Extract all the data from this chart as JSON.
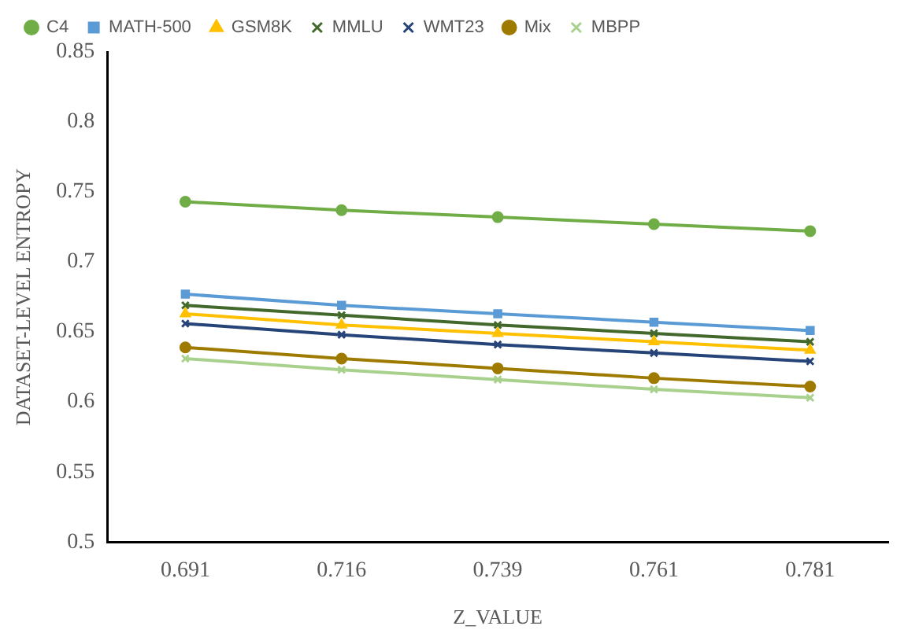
{
  "chart_data": {
    "type": "line",
    "xlabel": "Z_VALUE",
    "ylabel": "DATASET-LEVEL ENTROPY",
    "categories": [
      "0.691",
      "0.716",
      "0.739",
      "0.761",
      "0.781"
    ],
    "ylim": [
      0.5,
      0.85
    ],
    "yticks": [
      0.5,
      0.55,
      0.6,
      0.65,
      0.7,
      0.75,
      0.8,
      0.85
    ],
    "grid": false,
    "legend": "top",
    "series": [
      {
        "name": "C4",
        "color": "#70ad47",
        "marker": "circle",
        "values": [
          0.743,
          0.737,
          0.732,
          0.727,
          0.722
        ]
      },
      {
        "name": "MATH-500",
        "color": "#5b9bd5",
        "marker": "square",
        "values": [
          0.677,
          0.669,
          0.663,
          0.657,
          0.651
        ]
      },
      {
        "name": "GSM8K",
        "color": "#ffc000",
        "marker": "triangle",
        "values": [
          0.663,
          0.655,
          0.649,
          0.643,
          0.637
        ]
      },
      {
        "name": "MMLU",
        "color": "#43682b",
        "marker": "cross",
        "values": [
          0.669,
          0.662,
          0.655,
          0.649,
          0.643
        ]
      },
      {
        "name": "WMT23",
        "color": "#264478",
        "marker": "cross",
        "values": [
          0.656,
          0.648,
          0.641,
          0.635,
          0.629
        ]
      },
      {
        "name": "Mix",
        "color": "#9e7b00",
        "marker": "circle",
        "values": [
          0.639,
          0.631,
          0.624,
          0.617,
          0.611
        ]
      },
      {
        "name": "MBPP",
        "color": "#a9d18e",
        "marker": "cross",
        "values": [
          0.631,
          0.623,
          0.616,
          0.609,
          0.603
        ]
      }
    ]
  }
}
